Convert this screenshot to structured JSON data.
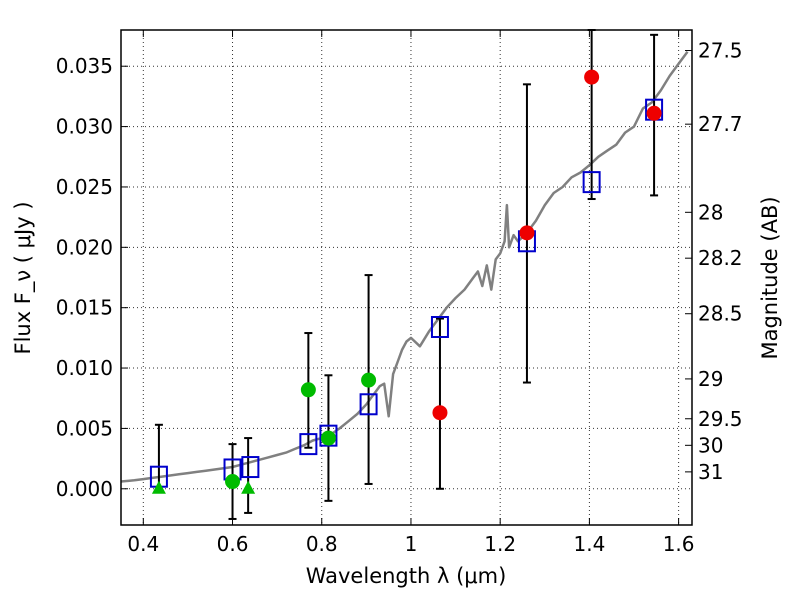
{
  "chart_data": {
    "type": "scatter",
    "xlabel": "Wavelength  λ (μm)",
    "ylabel": "Flux  F_ν  ( μJy )",
    "ylabel_right": "Magnitude (AB)",
    "xlim": [
      0.35,
      1.63
    ],
    "ylim": [
      -0.003,
      0.038
    ],
    "grid": true,
    "x_ticks": [
      0.4,
      0.6,
      0.8,
      1.0,
      1.2,
      1.4,
      1.6
    ],
    "x_tick_labels": [
      "0.4",
      "0.6",
      "0.8",
      "1",
      "1.2",
      "1.4",
      "1.6"
    ],
    "y_ticks": [
      0.0,
      0.005,
      0.01,
      0.015,
      0.02,
      0.025,
      0.03,
      0.035
    ],
    "y_tick_labels": [
      "0.000",
      "0.005",
      "0.010",
      "0.015",
      "0.020",
      "0.025",
      "0.030",
      "0.035"
    ],
    "mag_ticks": [
      {
        "label": "27.5",
        "flux": 0.0363
      },
      {
        "label": "27.7",
        "flux": 0.0302
      },
      {
        "label": "28",
        "flux": 0.0229
      },
      {
        "label": "28.2",
        "flux": 0.0191
      },
      {
        "label": "28.5",
        "flux": 0.0145
      },
      {
        "label": "29",
        "flux": 0.0091
      },
      {
        "label": "29.5",
        "flux": 0.0058
      },
      {
        "label": "30",
        "flux": 0.0036
      },
      {
        "label": "31",
        "flux": 0.0014
      }
    ],
    "series": [
      {
        "marker": "line",
        "color": "#808080",
        "x": [
          0.35,
          0.38,
          0.4,
          0.42,
          0.44,
          0.46,
          0.48,
          0.5,
          0.52,
          0.54,
          0.56,
          0.58,
          0.6,
          0.62,
          0.64,
          0.66,
          0.68,
          0.7,
          0.72,
          0.74,
          0.76,
          0.78,
          0.8,
          0.82,
          0.84,
          0.86,
          0.88,
          0.9,
          0.91,
          0.92,
          0.93,
          0.94,
          0.95,
          0.96,
          0.97,
          0.98,
          0.99,
          1.0,
          1.02,
          1.04,
          1.06,
          1.08,
          1.1,
          1.12,
          1.14,
          1.15,
          1.16,
          1.17,
          1.18,
          1.19,
          1.2,
          1.21,
          1.215,
          1.22,
          1.23,
          1.24,
          1.26,
          1.28,
          1.3,
          1.32,
          1.34,
          1.36,
          1.38,
          1.4,
          1.42,
          1.44,
          1.46,
          1.48,
          1.5,
          1.52,
          1.54,
          1.56,
          1.58,
          1.6,
          1.62
        ],
        "y": [
          0.0006,
          0.0007,
          0.0008,
          0.0009,
          0.001,
          0.0011,
          0.0012,
          0.0013,
          0.0014,
          0.0015,
          0.0016,
          0.0017,
          0.0018,
          0.002,
          0.0022,
          0.0024,
          0.0026,
          0.0028,
          0.003,
          0.0033,
          0.0036,
          0.004,
          0.0042,
          0.0045,
          0.005,
          0.0056,
          0.0062,
          0.007,
          0.0075,
          0.008,
          0.0085,
          0.0087,
          0.006,
          0.0095,
          0.0105,
          0.0115,
          0.0122,
          0.0125,
          0.0118,
          0.013,
          0.014,
          0.015,
          0.0158,
          0.0165,
          0.0175,
          0.018,
          0.0168,
          0.0185,
          0.0165,
          0.019,
          0.0195,
          0.0205,
          0.0235,
          0.02,
          0.021,
          0.0205,
          0.0212,
          0.0222,
          0.0235,
          0.0245,
          0.025,
          0.0258,
          0.0262,
          0.0268,
          0.0275,
          0.028,
          0.0285,
          0.0295,
          0.03,
          0.0315,
          0.032,
          0.033,
          0.0342,
          0.0352,
          0.0362
        ]
      },
      {
        "marker": "open-square",
        "color": "#0000cc",
        "x": [
          0.435,
          0.6,
          0.64,
          0.77,
          0.815,
          0.905,
          1.065,
          1.26,
          1.405,
          1.545
        ],
        "y": [
          0.001,
          0.0016,
          0.0018,
          0.0037,
          0.0044,
          0.007,
          0.0134,
          0.0205,
          0.0254,
          0.0314
        ]
      },
      {
        "marker": "filled-circle",
        "color": "#00bb00",
        "x": [
          0.6,
          0.77,
          0.815,
          0.905
        ],
        "y": [
          0.0006,
          0.0082,
          0.0042,
          0.009
        ]
      },
      {
        "marker": "filled-triangle",
        "color": "#00bb00",
        "x": [
          0.435,
          0.635
        ],
        "y": [
          0.0,
          0.0
        ]
      },
      {
        "marker": "filled-circle",
        "color": "#ee0000",
        "x": [
          1.065,
          1.26,
          1.405,
          1.545
        ],
        "y": [
          0.0063,
          0.0212,
          0.0341,
          0.0311
        ]
      }
    ],
    "error_bars": [
      {
        "x": 0.435,
        "low": -0.0001,
        "high": 0.0053
      },
      {
        "x": 0.6,
        "low": -0.0025,
        "high": 0.0037
      },
      {
        "x": 0.635,
        "low": -0.002,
        "high": 0.0042
      },
      {
        "x": 0.77,
        "low": 0.0034,
        "high": 0.0129
      },
      {
        "x": 0.815,
        "low": -0.001,
        "high": 0.0094
      },
      {
        "x": 0.905,
        "low": 0.0004,
        "high": 0.0177
      },
      {
        "x": 1.065,
        "low": 0.0,
        "high": 0.0141
      },
      {
        "x": 1.26,
        "low": 0.0088,
        "high": 0.0335
      },
      {
        "x": 1.405,
        "low": 0.024,
        "high": 0.038
      },
      {
        "x": 1.545,
        "low": 0.0243,
        "high": 0.0376
      }
    ]
  }
}
